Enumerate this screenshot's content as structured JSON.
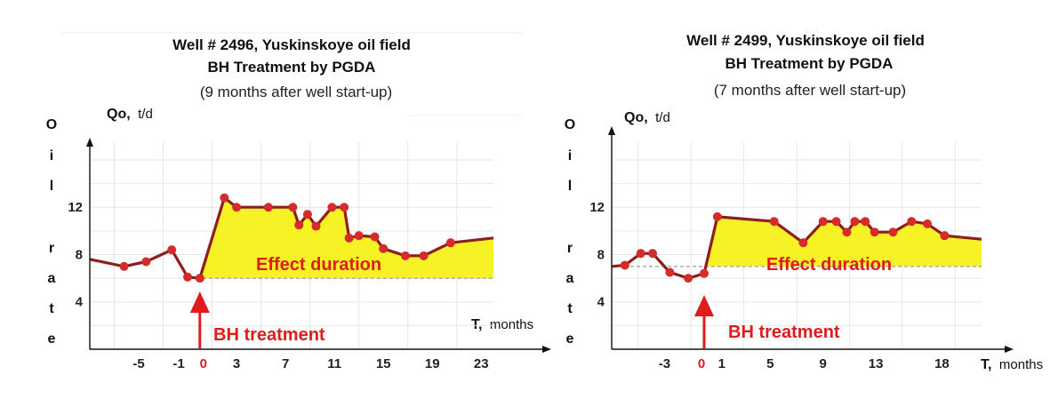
{
  "chart_data": [
    {
      "type": "line",
      "title": "Well # 2496, Yuskinskoye oil field",
      "subtitle": "BH Treatment  by PGDA",
      "note": "(9 months after well start-up)",
      "ylabel_bold": "Qo,",
      "ylabel_unit": "t/d",
      "xlabel_bold": "T,",
      "xlabel_unit": "months",
      "vertical_label": [
        "O",
        "i",
        "l",
        "",
        "r",
        "a",
        "t",
        "e"
      ],
      "y_ticks": [
        "4",
        "8",
        "12"
      ],
      "x_tick_labels": [
        "-5",
        "-1",
        "0",
        "3",
        "7",
        "11",
        "15",
        "19",
        "23"
      ],
      "x_tick_values": [
        -5,
        -1,
        0,
        3,
        7,
        11,
        15,
        19,
        23
      ],
      "highlight_tick": "0",
      "xlim": [
        -9,
        24
      ],
      "ylim": [
        0,
        17.5
      ],
      "baseline": 6.0,
      "effect_label": "Effect duration",
      "treatment_label": "BH treatment",
      "treatment_x": 0,
      "effect_start_x": 0,
      "line_start": {
        "x": -9,
        "y": 7.6
      },
      "line_end": {
        "x": 24,
        "y": 9.4
      },
      "points": [
        {
          "x": -6.2,
          "y": 7.0
        },
        {
          "x": -4.4,
          "y": 7.4
        },
        {
          "x": -2.3,
          "y": 8.4
        },
        {
          "x": -1.0,
          "y": 6.1
        },
        {
          "x": 0.0,
          "y": 6.0
        },
        {
          "x": 2.0,
          "y": 12.8
        },
        {
          "x": 3.0,
          "y": 12.0
        },
        {
          "x": 5.6,
          "y": 12.0
        },
        {
          "x": 7.6,
          "y": 12.0
        },
        {
          "x": 8.1,
          "y": 10.5
        },
        {
          "x": 8.8,
          "y": 11.4
        },
        {
          "x": 9.5,
          "y": 10.4
        },
        {
          "x": 10.8,
          "y": 12.0
        },
        {
          "x": 11.8,
          "y": 12.0
        },
        {
          "x": 12.2,
          "y": 9.4
        },
        {
          "x": 13.0,
          "y": 9.6
        },
        {
          "x": 14.3,
          "y": 9.5
        },
        {
          "x": 15.0,
          "y": 8.5
        },
        {
          "x": 16.8,
          "y": 7.9
        },
        {
          "x": 18.3,
          "y": 7.9
        },
        {
          "x": 20.5,
          "y": 9.0
        }
      ]
    },
    {
      "type": "line",
      "title": "Well # 2499, Yuskinskoye oil field",
      "subtitle": "BH Treatment  by PGDA",
      "note": "(7 months after well start-up)",
      "ylabel_bold": "Qo,",
      "ylabel_unit": "t/d",
      "xlabel_bold": "T,",
      "xlabel_unit": "months",
      "vertical_label": [
        "O",
        "i",
        "l",
        "",
        "r",
        "a",
        "t",
        "e"
      ],
      "y_ticks": [
        "4",
        "8",
        "12"
      ],
      "x_tick_labels": [
        "-3",
        "0",
        "1",
        "5",
        "9",
        "13",
        "18"
      ],
      "x_tick_values": [
        -3,
        0,
        1,
        5,
        9,
        13,
        18
      ],
      "highlight_tick": "0",
      "xlim": [
        -7,
        21
      ],
      "ylim": [
        0,
        17.5
      ],
      "baseline": 7.0,
      "effect_label": "Effect duration",
      "treatment_label": "BH treatment",
      "treatment_x": 0,
      "effect_start_x": 0,
      "line_start": {
        "x": -7,
        "y": 7.0
      },
      "line_end": {
        "x": 21,
        "y": 9.3
      },
      "points": [
        {
          "x": -6.0,
          "y": 7.1
        },
        {
          "x": -4.8,
          "y": 8.1
        },
        {
          "x": -3.9,
          "y": 8.1
        },
        {
          "x": -2.6,
          "y": 6.5
        },
        {
          "x": -1.2,
          "y": 6.0
        },
        {
          "x": 0.0,
          "y": 6.4
        },
        {
          "x": 1.0,
          "y": 11.2
        },
        {
          "x": 5.3,
          "y": 10.8
        },
        {
          "x": 7.5,
          "y": 9.0
        },
        {
          "x": 9.0,
          "y": 10.8
        },
        {
          "x": 10.0,
          "y": 10.8
        },
        {
          "x": 10.8,
          "y": 9.9
        },
        {
          "x": 11.4,
          "y": 10.8
        },
        {
          "x": 12.2,
          "y": 10.8
        },
        {
          "x": 12.9,
          "y": 9.9
        },
        {
          "x": 14.3,
          "y": 9.9
        },
        {
          "x": 15.7,
          "y": 10.8
        },
        {
          "x": 16.9,
          "y": 10.6
        },
        {
          "x": 18.2,
          "y": 9.6
        }
      ]
    }
  ]
}
